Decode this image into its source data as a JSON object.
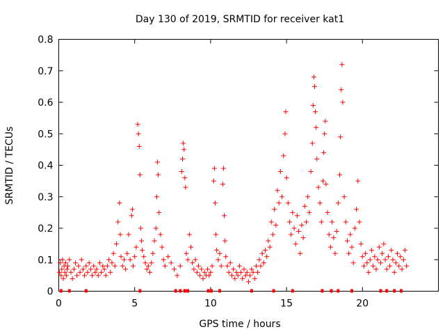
{
  "chart_data": {
    "type": "scatter",
    "title": "Day 130 of 2019, SRMTID for receiver kat1",
    "xlabel": "GPS time / hours",
    "ylabel": "SRMTID / TECUs",
    "xlim": [
      0,
      25
    ],
    "ylim": [
      0,
      0.8
    ],
    "xticks": [
      0,
      5,
      10,
      15,
      20
    ],
    "yticks": [
      0,
      0.1,
      0.2,
      0.3,
      0.4,
      0.5,
      0.6,
      0.7,
      0.8
    ],
    "ytick_labels": [
      "0",
      "0.1",
      "0.2",
      "0.3",
      "0.4",
      "0.5",
      "0.6",
      "0.7",
      "0.8"
    ],
    "grid": false,
    "marker": "+",
    "series": [
      {
        "name": "kat1",
        "color": "#ff0000",
        "points": [
          [
            0.05,
            0.06
          ],
          [
            0.1,
            0.09
          ],
          [
            0.15,
            0.05
          ],
          [
            0.2,
            0.07
          ],
          [
            0.25,
            0.1
          ],
          [
            0.3,
            0.04
          ],
          [
            0.35,
            0.08
          ],
          [
            0.4,
            0.06
          ],
          [
            0.45,
            0.09
          ],
          [
            0.5,
            0.05
          ],
          [
            0.55,
            0.07
          ],
          [
            0.6,
            0.08
          ],
          [
            0.7,
            0.1
          ],
          [
            0.8,
            0.06
          ],
          [
            0.9,
            0.04
          ],
          [
            1.0,
            0.07
          ],
          [
            1.1,
            0.09
          ],
          [
            1.2,
            0.05
          ],
          [
            1.3,
            0.08
          ],
          [
            1.4,
            0.06
          ],
          [
            1.5,
            0.1
          ],
          [
            1.6,
            0.07
          ],
          [
            1.7,
            0.05
          ],
          [
            1.8,
            0.08
          ],
          [
            1.9,
            0.06
          ],
          [
            2.0,
            0.09
          ],
          [
            2.1,
            0.07
          ],
          [
            2.2,
            0.05
          ],
          [
            2.3,
            0.08
          ],
          [
            2.4,
            0.06
          ],
          [
            2.5,
            0.07
          ],
          [
            2.6,
            0.05
          ],
          [
            2.7,
            0.09
          ],
          [
            2.8,
            0.06
          ],
          [
            2.9,
            0.08
          ],
          [
            3.0,
            0.07
          ],
          [
            3.1,
            0.05
          ],
          [
            3.2,
            0.08
          ],
          [
            3.3,
            0.1
          ],
          [
            3.4,
            0.06
          ],
          [
            3.5,
            0.09
          ],
          [
            3.6,
            0.12
          ],
          [
            3.7,
            0.08
          ],
          [
            3.8,
            0.15
          ],
          [
            3.9,
            0.22
          ],
          [
            4.0,
            0.28
          ],
          [
            4.05,
            0.18
          ],
          [
            4.1,
            0.11
          ],
          [
            4.2,
            0.08
          ],
          [
            4.3,
            0.1
          ],
          [
            4.4,
            0.07
          ],
          [
            4.5,
            0.12
          ],
          [
            4.6,
            0.18
          ],
          [
            4.7,
            0.1
          ],
          [
            4.8,
            0.24
          ],
          [
            4.85,
            0.26
          ],
          [
            4.9,
            0.08
          ],
          [
            5.0,
            0.11
          ],
          [
            5.1,
            0.14
          ],
          [
            5.2,
            0.53
          ],
          [
            5.25,
            0.5
          ],
          [
            5.3,
            0.46
          ],
          [
            5.35,
            0.37
          ],
          [
            5.4,
            0.2
          ],
          [
            5.45,
            0.16
          ],
          [
            5.5,
            0.13
          ],
          [
            5.6,
            0.11
          ],
          [
            5.7,
            0.09
          ],
          [
            5.8,
            0.07
          ],
          [
            5.9,
            0.08
          ],
          [
            6.0,
            0.06
          ],
          [
            6.1,
            0.09
          ],
          [
            6.2,
            0.12
          ],
          [
            6.3,
            0.16
          ],
          [
            6.4,
            0.2
          ],
          [
            6.45,
            0.3
          ],
          [
            6.5,
            0.41
          ],
          [
            6.55,
            0.37
          ],
          [
            6.6,
            0.25
          ],
          [
            6.7,
            0.18
          ],
          [
            6.8,
            0.14
          ],
          [
            6.9,
            0.1
          ],
          [
            7.0,
            0.08
          ],
          [
            7.2,
            0.11
          ],
          [
            7.4,
            0.09
          ],
          [
            7.6,
            0.07
          ],
          [
            7.8,
            0.05
          ],
          [
            8.0,
            0.08
          ],
          [
            8.1,
            0.38
          ],
          [
            8.15,
            0.42
          ],
          [
            8.2,
            0.47
          ],
          [
            8.25,
            0.45
          ],
          [
            8.3,
            0.36
          ],
          [
            8.35,
            0.33
          ],
          [
            8.4,
            0.12
          ],
          [
            8.5,
            0.1
          ],
          [
            8.6,
            0.18
          ],
          [
            8.7,
            0.14
          ],
          [
            8.8,
            0.09
          ],
          [
            8.9,
            0.07
          ],
          [
            9.0,
            0.1
          ],
          [
            9.1,
            0.06
          ],
          [
            9.2,
            0.08
          ],
          [
            9.3,
            0.05
          ],
          [
            9.4,
            0.07
          ],
          [
            9.5,
            0.04
          ],
          [
            9.6,
            0.06
          ],
          [
            9.7,
            0.05
          ],
          [
            9.8,
            0.07
          ],
          [
            9.9,
            0.05
          ],
          [
            10.0,
            0.06
          ],
          [
            10.1,
            0.08
          ],
          [
            10.2,
            0.35
          ],
          [
            10.25,
            0.39
          ],
          [
            10.3,
            0.28
          ],
          [
            10.35,
            0.18
          ],
          [
            10.4,
            0.13
          ],
          [
            10.5,
            0.1
          ],
          [
            10.6,
            0.12
          ],
          [
            10.7,
            0.08
          ],
          [
            10.8,
            0.34
          ],
          [
            10.85,
            0.39
          ],
          [
            10.9,
            0.24
          ],
          [
            10.95,
            0.16
          ],
          [
            11.0,
            0.11
          ],
          [
            11.1,
            0.08
          ],
          [
            11.2,
            0.06
          ],
          [
            11.3,
            0.09
          ],
          [
            11.4,
            0.05
          ],
          [
            11.5,
            0.07
          ],
          [
            11.6,
            0.04
          ],
          [
            11.7,
            0.06
          ],
          [
            11.8,
            0.05
          ],
          [
            11.9,
            0.08
          ],
          [
            12.0,
            0.06
          ],
          [
            12.1,
            0.04
          ],
          [
            12.2,
            0.07
          ],
          [
            12.3,
            0.05
          ],
          [
            12.4,
            0.06
          ],
          [
            12.5,
            0.03
          ],
          [
            12.6,
            0.05
          ],
          [
            12.7,
            0.07
          ],
          [
            12.8,
            0.06
          ],
          [
            12.9,
            0.04
          ],
          [
            13.0,
            0.08
          ],
          [
            13.1,
            0.06
          ],
          [
            13.2,
            0.1
          ],
          [
            13.3,
            0.08
          ],
          [
            13.4,
            0.12
          ],
          [
            13.5,
            0.09
          ],
          [
            13.6,
            0.13
          ],
          [
            13.7,
            0.11
          ],
          [
            13.8,
            0.16
          ],
          [
            13.9,
            0.14
          ],
          [
            14.0,
            0.22
          ],
          [
            14.1,
            0.18
          ],
          [
            14.2,
            0.26
          ],
          [
            14.3,
            0.21
          ],
          [
            14.4,
            0.32
          ],
          [
            14.5,
            0.28
          ],
          [
            14.6,
            0.38
          ],
          [
            14.7,
            0.3
          ],
          [
            14.8,
            0.43
          ],
          [
            14.9,
            0.5
          ],
          [
            14.95,
            0.57
          ],
          [
            15.0,
            0.36
          ],
          [
            15.1,
            0.28
          ],
          [
            15.2,
            0.22
          ],
          [
            15.3,
            0.18
          ],
          [
            15.4,
            0.25
          ],
          [
            15.5,
            0.2
          ],
          [
            15.6,
            0.15
          ],
          [
            15.7,
            0.24
          ],
          [
            15.8,
            0.19
          ],
          [
            15.9,
            0.12
          ],
          [
            16.0,
            0.21
          ],
          [
            16.1,
            0.17
          ],
          [
            16.2,
            0.27
          ],
          [
            16.3,
            0.22
          ],
          [
            16.4,
            0.3
          ],
          [
            16.5,
            0.25
          ],
          [
            16.6,
            0.38
          ],
          [
            16.7,
            0.47
          ],
          [
            16.75,
            0.59
          ],
          [
            16.8,
            0.68
          ],
          [
            16.85,
            0.65
          ],
          [
            16.9,
            0.57
          ],
          [
            16.95,
            0.52
          ],
          [
            17.0,
            0.42
          ],
          [
            17.1,
            0.33
          ],
          [
            17.2,
            0.28
          ],
          [
            17.3,
            0.22
          ],
          [
            17.4,
            0.35
          ],
          [
            17.45,
            0.44
          ],
          [
            17.5,
            0.5
          ],
          [
            17.55,
            0.54
          ],
          [
            17.6,
            0.34
          ],
          [
            17.7,
            0.25
          ],
          [
            17.8,
            0.18
          ],
          [
            17.9,
            0.14
          ],
          [
            18.0,
            0.22
          ],
          [
            18.1,
            0.17
          ],
          [
            18.2,
            0.12
          ],
          [
            18.3,
            0.19
          ],
          [
            18.4,
            0.28
          ],
          [
            18.5,
            0.37
          ],
          [
            18.55,
            0.49
          ],
          [
            18.6,
            0.64
          ],
          [
            18.65,
            0.72
          ],
          [
            18.7,
            0.6
          ],
          [
            18.8,
            0.3
          ],
          [
            18.9,
            0.22
          ],
          [
            19.0,
            0.16
          ],
          [
            19.1,
            0.12
          ],
          [
            19.2,
            0.18
          ],
          [
            19.3,
            0.14
          ],
          [
            19.4,
            0.09
          ],
          [
            19.5,
            0.2
          ],
          [
            19.6,
            0.26
          ],
          [
            19.7,
            0.35
          ],
          [
            19.8,
            0.22
          ],
          [
            19.9,
            0.15
          ],
          [
            20.0,
            0.11
          ],
          [
            20.1,
            0.08
          ],
          [
            20.2,
            0.12
          ],
          [
            20.3,
            0.09
          ],
          [
            20.4,
            0.06
          ],
          [
            20.5,
            0.1
          ],
          [
            20.6,
            0.13
          ],
          [
            20.7,
            0.08
          ],
          [
            20.8,
            0.11
          ],
          [
            20.9,
            0.07
          ],
          [
            21.0,
            0.1
          ],
          [
            21.1,
            0.14
          ],
          [
            21.2,
            0.09
          ],
          [
            21.3,
            0.12
          ],
          [
            21.4,
            0.15
          ],
          [
            21.5,
            0.1
          ],
          [
            21.6,
            0.07
          ],
          [
            21.7,
            0.11
          ],
          [
            21.8,
            0.08
          ],
          [
            21.9,
            0.13
          ],
          [
            22.0,
            0.1
          ],
          [
            22.1,
            0.06
          ],
          [
            22.2,
            0.09
          ],
          [
            22.3,
            0.12
          ],
          [
            22.4,
            0.08
          ],
          [
            22.5,
            0.11
          ],
          [
            22.6,
            0.07
          ],
          [
            22.7,
            0.1
          ],
          [
            22.8,
            0.13
          ],
          [
            22.9,
            0.08
          ]
        ]
      }
    ],
    "baseline_marks_x": [
      0.15,
      0.7,
      1.8,
      5.35,
      7.7,
      8.0,
      8.3,
      8.5,
      9.85,
      10.05,
      10.6,
      12.7,
      14.15,
      15.4,
      17.35,
      17.95,
      18.4,
      19.3,
      21.2,
      21.6,
      22.1,
      22.55
    ]
  }
}
